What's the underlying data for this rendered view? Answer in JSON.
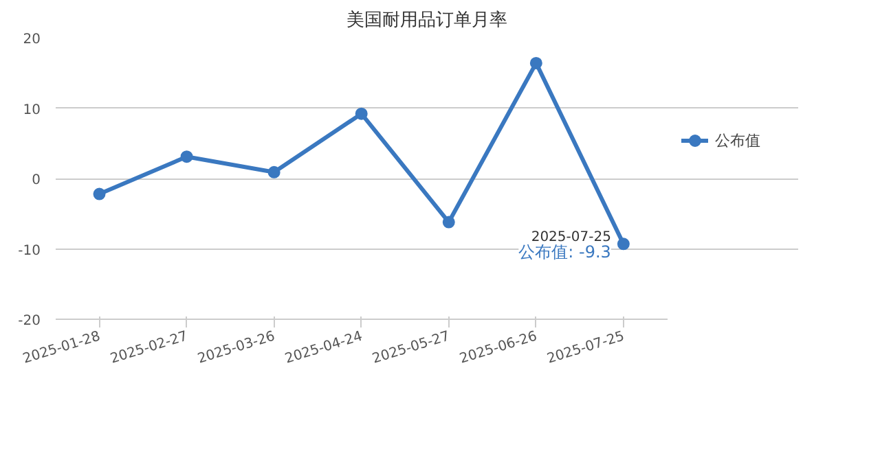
{
  "chart_data": {
    "type": "line",
    "title": "美国耐用品订单月率",
    "categories": [
      "2025-01-28",
      "2025-02-27",
      "2025-03-26",
      "2025-04-24",
      "2025-05-27",
      "2025-06-26",
      "2025-07-25"
    ],
    "series": [
      {
        "name": "公布值",
        "color": "#3a78c0",
        "values": [
          -2.2,
          3.1,
          0.9,
          9.2,
          -6.2,
          16.4,
          -9.3
        ]
      }
    ],
    "ylim": [
      -20,
      20
    ],
    "yticks": [
      -20,
      -10,
      0,
      10,
      20
    ],
    "grid": "y",
    "legend": "right",
    "marker": "circle",
    "line_style": "solid",
    "annotations": [
      {
        "text": "2025-07-25",
        "x": "2025-07-25",
        "y": -9.3
      },
      {
        "text": "公布值: -9.3",
        "x": "2025-07-25",
        "y": -9.3
      }
    ]
  }
}
